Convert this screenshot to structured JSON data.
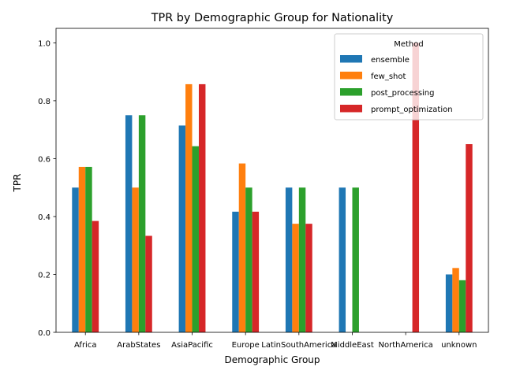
{
  "chart_data": {
    "type": "bar",
    "title": "TPR by Demographic Group for Nationality",
    "xlabel": "Demographic Group",
    "ylabel": "TPR",
    "ylim": [
      0,
      1.05
    ],
    "yticks": [
      0.0,
      0.2,
      0.4,
      0.6,
      0.8,
      1.0
    ],
    "ytick_labels": [
      "0.0",
      "0.2",
      "0.4",
      "0.6",
      "0.8",
      "1.0"
    ],
    "categories": [
      "Africa",
      "ArabStates",
      "AsiaPacific",
      "Europe",
      "LatinSouthAmerica",
      "MiddleEast",
      "NorthAmerica",
      "unknown"
    ],
    "legend": {
      "title": "Method",
      "position": "top-right"
    },
    "grid": false,
    "series": [
      {
        "name": "ensemble",
        "color": "#1f77b4",
        "values": [
          0.5,
          0.75,
          0.7143,
          0.4167,
          0.5,
          0.5,
          0.0,
          0.2
        ]
      },
      {
        "name": "few_shot",
        "color": "#ff7f0e",
        "values": [
          0.5714,
          0.5,
          0.8571,
          0.5833,
          0.375,
          0.0,
          0.0,
          0.2222
        ]
      },
      {
        "name": "post_processing",
        "color": "#2ca02c",
        "values": [
          0.5714,
          0.75,
          0.6429,
          0.5,
          0.5,
          0.5,
          0.0,
          0.18
        ]
      },
      {
        "name": "prompt_optimization",
        "color": "#d62728",
        "values": [
          0.3846,
          0.3333,
          0.8571,
          0.4167,
          0.375,
          0.0,
          1.0,
          0.65
        ]
      }
    ]
  }
}
